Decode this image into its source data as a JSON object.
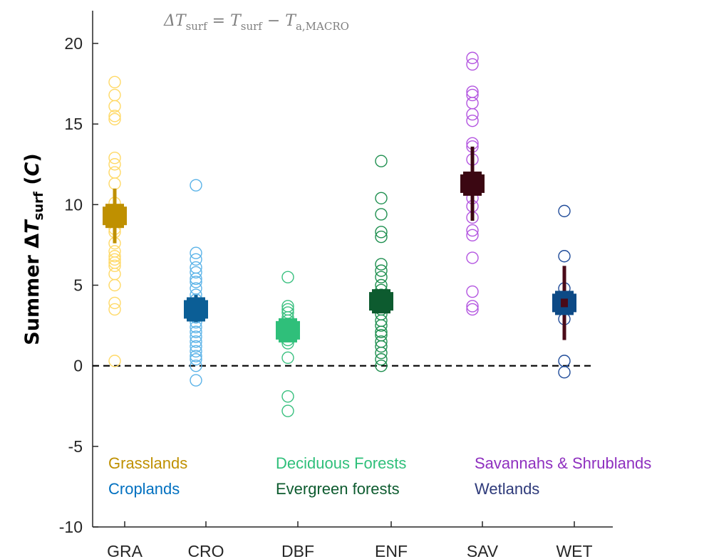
{
  "chart_data": {
    "type": "scatter",
    "title": "ΔTsurf = Tsurf − Ta,MACRO",
    "ylabel": "Summer ΔTsurf (C)",
    "xlabel": "",
    "ylim": [
      -10,
      20
    ],
    "yticks": [
      20,
      15,
      10,
      5,
      0,
      -5,
      -10
    ],
    "reference_line": {
      "y": 0,
      "style": "dashed",
      "color": "#000000"
    },
    "categories": [
      "GRA",
      "CRO",
      "DBF",
      "ENF",
      "SAV",
      "WET"
    ],
    "series": [
      {
        "category": "GRA",
        "color": "#ffd966",
        "mean_color": "#bf9000",
        "mean": 9.3,
        "err_low": 7.6,
        "err_high": 11.0,
        "points": [
          17.6,
          16.8,
          16.1,
          15.5,
          15.3,
          12.9,
          12.5,
          12.0,
          11.3,
          10.1,
          9.5,
          9.2,
          8.5,
          8.3,
          7.6,
          7.1,
          6.8,
          6.6,
          6.4,
          6.2,
          5.7,
          5.0,
          3.9,
          3.5,
          0.3
        ]
      },
      {
        "category": "CRO",
        "color": "#5bb3e8",
        "mean_color": "#0b5e96",
        "mean": 3.5,
        "err_low": 2.7,
        "err_high": 4.4,
        "points": [
          11.2,
          7.0,
          6.6,
          6.1,
          5.8,
          5.4,
          5.2,
          4.8,
          4.4,
          4.1,
          3.8,
          3.6,
          3.3,
          3.0,
          2.7,
          2.4,
          2.1,
          1.8,
          1.5,
          1.2,
          0.9,
          0.6,
          0.4,
          0.0,
          -0.9
        ]
      },
      {
        "category": "DBF",
        "color": "#39c07f",
        "mean_color": "#2fbf7a",
        "mean": 2.2,
        "err_low": 1.6,
        "err_high": 2.8,
        "points": [
          5.5,
          3.7,
          3.5,
          3.3,
          3.0,
          2.8,
          2.5,
          2.2,
          1.9,
          1.6,
          1.4,
          0.5,
          -1.9,
          -2.8
        ]
      },
      {
        "category": "ENF",
        "color": "#1e8f4f",
        "mean_color": "#0d5b2f",
        "mean": 4.0,
        "err_low": 3.3,
        "err_high": 4.7,
        "points": [
          12.7,
          10.4,
          9.4,
          8.3,
          8.0,
          6.3,
          5.9,
          5.5,
          5.0,
          4.7,
          4.4,
          4.1,
          3.8,
          3.5,
          3.2,
          2.8,
          2.5,
          2.1,
          1.9,
          1.5,
          1.2,
          0.8,
          0.4,
          0.0
        ]
      },
      {
        "category": "SAV",
        "color": "#b355e0",
        "mean_color": "#3b0712",
        "mean": 11.3,
        "err_low": 9.0,
        "err_high": 13.6,
        "points": [
          19.1,
          18.7,
          17.0,
          16.8,
          16.3,
          15.6,
          15.2,
          13.8,
          13.6,
          12.8,
          11.5,
          10.4,
          9.9,
          9.2,
          8.4,
          8.1,
          6.7,
          4.6,
          3.7,
          3.5
        ]
      },
      {
        "category": "WET",
        "color": "#1f4b99",
        "mean_color": "#0d4a86",
        "err_color": "#4a0b19",
        "mean": 3.9,
        "err_low": 1.6,
        "err_high": 6.2,
        "points": [
          9.6,
          6.8,
          4.8,
          4.2,
          3.6,
          2.9,
          0.3,
          -0.4
        ]
      }
    ],
    "legend": [
      {
        "label": "Grasslands",
        "color": "#bf9000",
        "row": 1,
        "col": 1
      },
      {
        "label": "Croplands",
        "color": "#0070c0",
        "row": 2,
        "col": 1
      },
      {
        "label": "Deciduous Forests",
        "color": "#2fbf7a",
        "row": 1,
        "col": 2
      },
      {
        "label": "Evergreen forests",
        "color": "#0d5b2f",
        "row": 2,
        "col": 2
      },
      {
        "label": "Savannahs & Shrublands",
        "color": "#8e2fbf",
        "row": 1,
        "col": 3
      },
      {
        "label": "Wetlands",
        "color": "#2e3a7a",
        "row": 2,
        "col": 3
      }
    ]
  }
}
